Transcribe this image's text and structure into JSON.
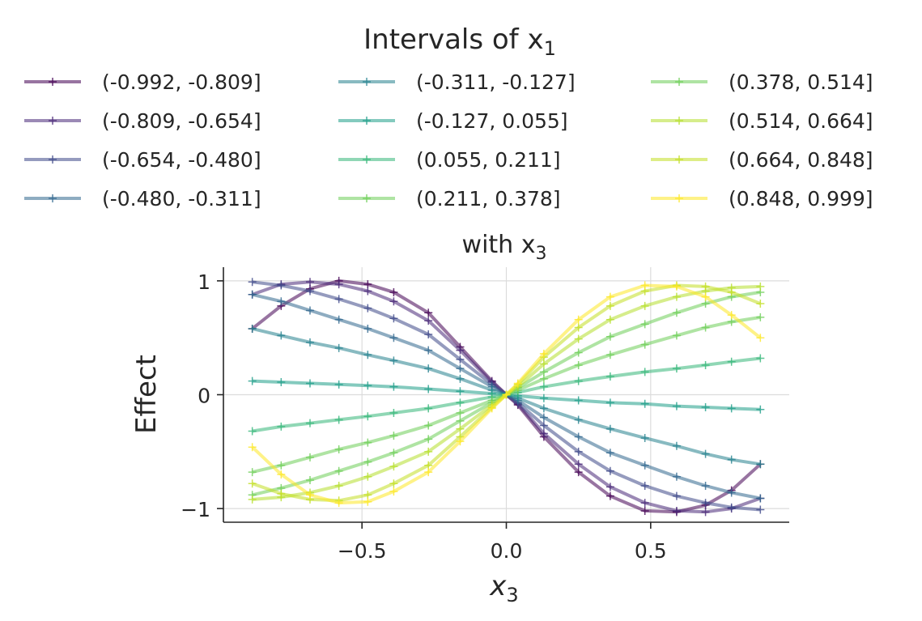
{
  "chart_data": {
    "type": "line",
    "legend": {
      "title_base": "Intervals of x",
      "title_sub": "1",
      "placement": "top",
      "columns": 3
    },
    "title_base": "with x",
    "title_sub": "3",
    "xlabel_base": "x",
    "xlabel_sub": "3",
    "ylabel": "Effect",
    "xlim": [
      -0.98,
      0.98
    ],
    "ylim": [
      -1.12,
      1.12
    ],
    "xticks": [
      -0.5,
      0.0,
      0.5
    ],
    "xtick_labels": [
      "−0.5",
      "0.0",
      "0.5"
    ],
    "yticks": [
      -1,
      0,
      1
    ],
    "ytick_labels": [
      "−1",
      "0",
      "1"
    ],
    "grid": true,
    "x": [
      -0.88,
      -0.78,
      -0.68,
      -0.58,
      -0.48,
      -0.39,
      -0.27,
      -0.16,
      -0.05,
      0.0,
      0.04,
      0.13,
      0.25,
      0.36,
      0.48,
      0.59,
      0.69,
      0.78,
      0.88
    ],
    "series": [
      {
        "name": "(-0.992, -0.809]",
        "color": "#440154",
        "values": [
          0.58,
          0.78,
          0.93,
          1.0,
          0.97,
          0.9,
          0.72,
          0.42,
          0.12,
          0.0,
          -0.09,
          -0.37,
          -0.68,
          -0.89,
          -1.02,
          -1.03,
          -0.97,
          -0.84,
          -0.61
        ]
      },
      {
        "name": "(-0.809, -0.654]",
        "color": "#482878",
        "values": [
          0.88,
          0.97,
          0.99,
          0.97,
          0.91,
          0.82,
          0.65,
          0.39,
          0.11,
          0.0,
          -0.08,
          -0.34,
          -0.61,
          -0.81,
          -0.95,
          -1.02,
          -1.03,
          -1.0,
          -0.91
        ]
      },
      {
        "name": "(-0.654, -0.480]",
        "color": "#3e4989",
        "values": [
          0.99,
          0.96,
          0.91,
          0.84,
          0.76,
          0.67,
          0.53,
          0.31,
          0.09,
          0.0,
          -0.07,
          -0.27,
          -0.5,
          -0.67,
          -0.8,
          -0.89,
          -0.95,
          -0.99,
          -1.01
        ]
      },
      {
        "name": "(-0.480, -0.311]",
        "color": "#31688e",
        "values": [
          0.88,
          0.82,
          0.74,
          0.66,
          0.58,
          0.5,
          0.39,
          0.23,
          0.07,
          0.0,
          -0.05,
          -0.2,
          -0.37,
          -0.51,
          -0.62,
          -0.72,
          -0.8,
          -0.86,
          -0.91
        ]
      },
      {
        "name": "(-0.311, -0.127]",
        "color": "#26828e",
        "values": [
          0.58,
          0.52,
          0.46,
          0.41,
          0.35,
          0.3,
          0.23,
          0.14,
          0.04,
          0.0,
          -0.03,
          -0.12,
          -0.22,
          -0.3,
          -0.38,
          -0.45,
          -0.52,
          -0.57,
          -0.61
        ]
      },
      {
        "name": "(-0.127, 0.055]",
        "color": "#1f9e89",
        "values": [
          0.12,
          0.11,
          0.1,
          0.09,
          0.08,
          0.07,
          0.05,
          0.03,
          0.01,
          0.0,
          -0.01,
          -0.03,
          -0.05,
          -0.07,
          -0.08,
          -0.1,
          -0.11,
          -0.12,
          -0.13
        ]
      },
      {
        "name": "(0.055, 0.211]",
        "color": "#35b779",
        "values": [
          -0.32,
          -0.28,
          -0.25,
          -0.22,
          -0.19,
          -0.16,
          -0.12,
          -0.07,
          -0.02,
          0.0,
          0.02,
          0.07,
          0.12,
          0.16,
          0.2,
          0.23,
          0.26,
          0.29,
          0.32
        ]
      },
      {
        "name": "(0.211, 0.378]",
        "color": "#6ece58",
        "values": [
          -0.68,
          -0.62,
          -0.55,
          -0.48,
          -0.42,
          -0.36,
          -0.27,
          -0.16,
          -0.05,
          0.0,
          0.04,
          0.14,
          0.26,
          0.35,
          0.44,
          0.52,
          0.59,
          0.64,
          0.68
        ]
      },
      {
        "name": "(0.378, 0.514]",
        "color": "#6ece58",
        "values": [
          -0.88,
          -0.82,
          -0.75,
          -0.67,
          -0.59,
          -0.51,
          -0.39,
          -0.23,
          -0.07,
          0.0,
          0.06,
          0.2,
          0.37,
          0.51,
          0.62,
          0.72,
          0.8,
          0.86,
          0.9
        ]
      },
      {
        "name": "(0.514, 0.664]",
        "color": "#b5de2b",
        "values": [
          -0.92,
          -0.9,
          -0.86,
          -0.8,
          -0.72,
          -0.63,
          -0.5,
          -0.3,
          -0.09,
          0.0,
          0.07,
          0.27,
          0.49,
          0.66,
          0.78,
          0.86,
          0.91,
          0.94,
          0.95
        ]
      },
      {
        "name": "(0.664, 0.848]",
        "color": "#c2df23",
        "values": [
          -0.78,
          -0.87,
          -0.92,
          -0.93,
          -0.88,
          -0.78,
          -0.62,
          -0.37,
          -0.11,
          0.0,
          0.09,
          0.33,
          0.59,
          0.78,
          0.91,
          0.96,
          0.95,
          0.9,
          0.8
        ]
      },
      {
        "name": "(0.848, 0.999]",
        "color": "#fde725",
        "values": [
          -0.46,
          -0.7,
          -0.88,
          -0.95,
          -0.94,
          -0.85,
          -0.68,
          -0.41,
          -0.12,
          0.0,
          0.1,
          0.36,
          0.66,
          0.86,
          0.96,
          0.95,
          0.86,
          0.7,
          0.5
        ]
      }
    ]
  }
}
